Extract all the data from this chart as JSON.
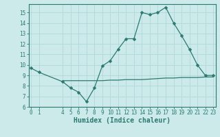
{
  "line1_x": [
    0,
    1,
    4,
    5,
    6,
    7,
    8,
    9,
    10,
    11,
    12,
    13,
    14,
    15,
    16,
    17,
    18,
    19,
    20,
    21,
    22,
    23
  ],
  "line1_y": [
    9.7,
    9.3,
    8.4,
    7.8,
    7.4,
    6.5,
    7.8,
    9.9,
    10.4,
    11.5,
    12.5,
    12.5,
    15.0,
    14.8,
    15.0,
    15.5,
    14.0,
    12.8,
    11.5,
    10.0,
    9.0,
    9.0
  ],
  "line2_x": [
    4,
    5,
    6,
    7,
    8,
    9,
    10,
    11,
    12,
    13,
    14,
    15,
    16,
    17,
    18,
    19,
    20,
    21,
    22,
    23
  ],
  "line2_y": [
    8.5,
    8.5,
    8.5,
    8.5,
    8.5,
    8.5,
    8.55,
    8.55,
    8.6,
    8.6,
    8.6,
    8.65,
    8.7,
    8.75,
    8.75,
    8.8,
    8.8,
    8.8,
    8.85,
    8.85
  ],
  "line_color": "#2a7a70",
  "bg_color": "#cceaea",
  "grid_color": "#b0d8d8",
  "xlabel": "Humidex (Indice chaleur)",
  "ylim": [
    6,
    15.8
  ],
  "xlim": [
    -0.3,
    23.3
  ],
  "yticks": [
    6,
    7,
    8,
    9,
    10,
    11,
    12,
    13,
    14,
    15
  ],
  "xticks": [
    0,
    1,
    4,
    5,
    6,
    7,
    8,
    9,
    10,
    11,
    12,
    13,
    14,
    15,
    16,
    17,
    18,
    19,
    20,
    21,
    22,
    23
  ],
  "tick_fontsize": 5.5,
  "xlabel_fontsize": 7.0,
  "marker_size": 2.5,
  "linewidth": 0.9
}
